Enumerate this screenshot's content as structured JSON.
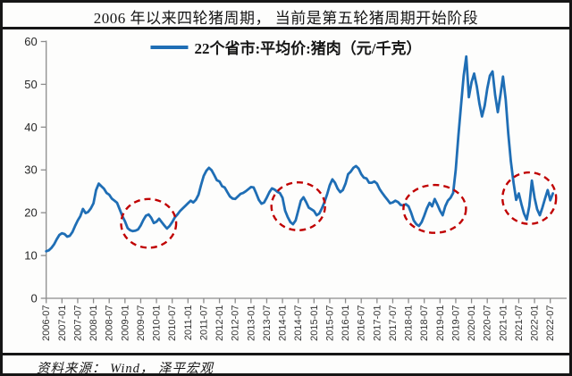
{
  "title": "2006 年以来四轮猪周期， 当前是第五轮猪周期开始阶段",
  "source": "资料来源： Wind， 泽平宏观",
  "legend": {
    "label": "22个省市:平均价:猪肉（元/千克）"
  },
  "colors": {
    "line": "#1f6eb5",
    "annotation": "#c00000",
    "axis": "#8c8c8c",
    "text": "#161616"
  },
  "chart_data": {
    "type": "line",
    "title": "2006 年以来四轮猪周期， 当前是第五轮猪周期开始阶段",
    "ylabel": "",
    "xlabel": "",
    "ylim": [
      0,
      60
    ],
    "y_ticks": [
      0,
      10,
      20,
      30,
      40,
      50,
      60
    ],
    "grid": false,
    "legend_position": "top-center",
    "x_start_month": "2006-07",
    "x_frequency": "monthly",
    "x_tick_every_n_points": 6,
    "x_tick_labels": [
      "2006-07",
      "2007-01",
      "2007-07",
      "2008-01",
      "2008-07",
      "2009-01",
      "2009-07",
      "2010-01",
      "2010-07",
      "2011-01",
      "2011-07",
      "2012-01",
      "2012-07",
      "2013-01",
      "2013-07",
      "2014-01",
      "2014-07",
      "2015-01",
      "2015-07",
      "2016-01",
      "2016-07",
      "2017-01",
      "2017-07",
      "2018-01",
      "2018-07",
      "2019-01",
      "2019-07",
      "2020-01",
      "2020-07",
      "2021-01",
      "2021-07",
      "2022-01",
      "2022-07"
    ],
    "series": [
      {
        "name": "22个省市:平均价:猪肉（元/千克）",
        "values": [
          11.0,
          11.2,
          11.8,
          12.6,
          13.8,
          14.8,
          15.2,
          15.0,
          14.4,
          14.6,
          15.5,
          16.9,
          18.2,
          19.2,
          20.9,
          19.9,
          20.2,
          21.0,
          22.2,
          25.3,
          26.8,
          26.2,
          25.6,
          24.6,
          24.2,
          23.3,
          22.8,
          22.3,
          20.8,
          19.2,
          18.0,
          16.4,
          15.9,
          15.7,
          15.8,
          16.1,
          17.0,
          18.3,
          19.3,
          19.6,
          18.8,
          17.6,
          17.9,
          18.6,
          17.8,
          17.0,
          16.3,
          16.9,
          17.8,
          18.9,
          19.6,
          20.4,
          21.0,
          21.6,
          22.2,
          22.8,
          22.4,
          23.0,
          24.2,
          26.5,
          28.6,
          29.8,
          30.5,
          29.9,
          28.8,
          27.6,
          27.3,
          26.2,
          25.9,
          24.8,
          23.8,
          23.3,
          23.2,
          23.8,
          24.4,
          24.6,
          25.0,
          25.5,
          26.0,
          25.9,
          24.5,
          23.0,
          22.1,
          22.4,
          23.5,
          24.8,
          25.7,
          25.4,
          24.9,
          24.6,
          23.5,
          20.5,
          19.0,
          17.8,
          17.3,
          18.2,
          20.5,
          22.8,
          23.6,
          22.5,
          21.2,
          20.8,
          20.4,
          19.4,
          19.8,
          21.0,
          22.5,
          24.3,
          26.4,
          27.8,
          27.0,
          25.6,
          24.8,
          25.3,
          26.8,
          29.0,
          29.6,
          30.5,
          30.9,
          30.3,
          29.0,
          28.2,
          28.0,
          27.0,
          27.0,
          27.3,
          26.8,
          25.5,
          24.6,
          23.8,
          23.0,
          22.2,
          22.4,
          22.8,
          22.5,
          21.8,
          21.7,
          22.0,
          21.5,
          20.0,
          18.2,
          17.3,
          16.9,
          17.8,
          19.3,
          21.0,
          22.3,
          21.5,
          23.2,
          21.9,
          20.5,
          19.4,
          21.5,
          22.8,
          23.5,
          24.6,
          30.0,
          38.0,
          45.0,
          52.0,
          56.5,
          47.0,
          50.5,
          52.5,
          49.5,
          45.5,
          42.5,
          45.0,
          49.0,
          52.0,
          53.0,
          47.5,
          43.5,
          47.5,
          51.8,
          46.5,
          38.5,
          32.0,
          27.0,
          23.0,
          24.5,
          22.0,
          19.8,
          18.4,
          21.5,
          27.5,
          23.5,
          20.8,
          19.4,
          21.2,
          23.3,
          25.3,
          22.9,
          24.5
        ]
      }
    ],
    "annotations": [
      {
        "name": "cycle-trough-1",
        "shape": "dashed-ellipse",
        "center_index": 39,
        "center_value": 17.5,
        "rx_months": 10.5,
        "ry_units": 5.7
      },
      {
        "name": "cycle-trough-2",
        "shape": "dashed-ellipse",
        "center_index": 96,
        "center_value": 21.5,
        "rx_months": 10.2,
        "ry_units": 5.6
      },
      {
        "name": "cycle-trough-3",
        "shape": "dashed-ellipse",
        "center_index": 148,
        "center_value": 20.9,
        "rx_months": 11.9,
        "ry_units": 5.6
      },
      {
        "name": "cycle-trough-4",
        "shape": "dashed-ellipse",
        "center_index": 184,
        "center_value": 23.4,
        "rx_months": 10.2,
        "ry_units": 6.0
      }
    ]
  }
}
